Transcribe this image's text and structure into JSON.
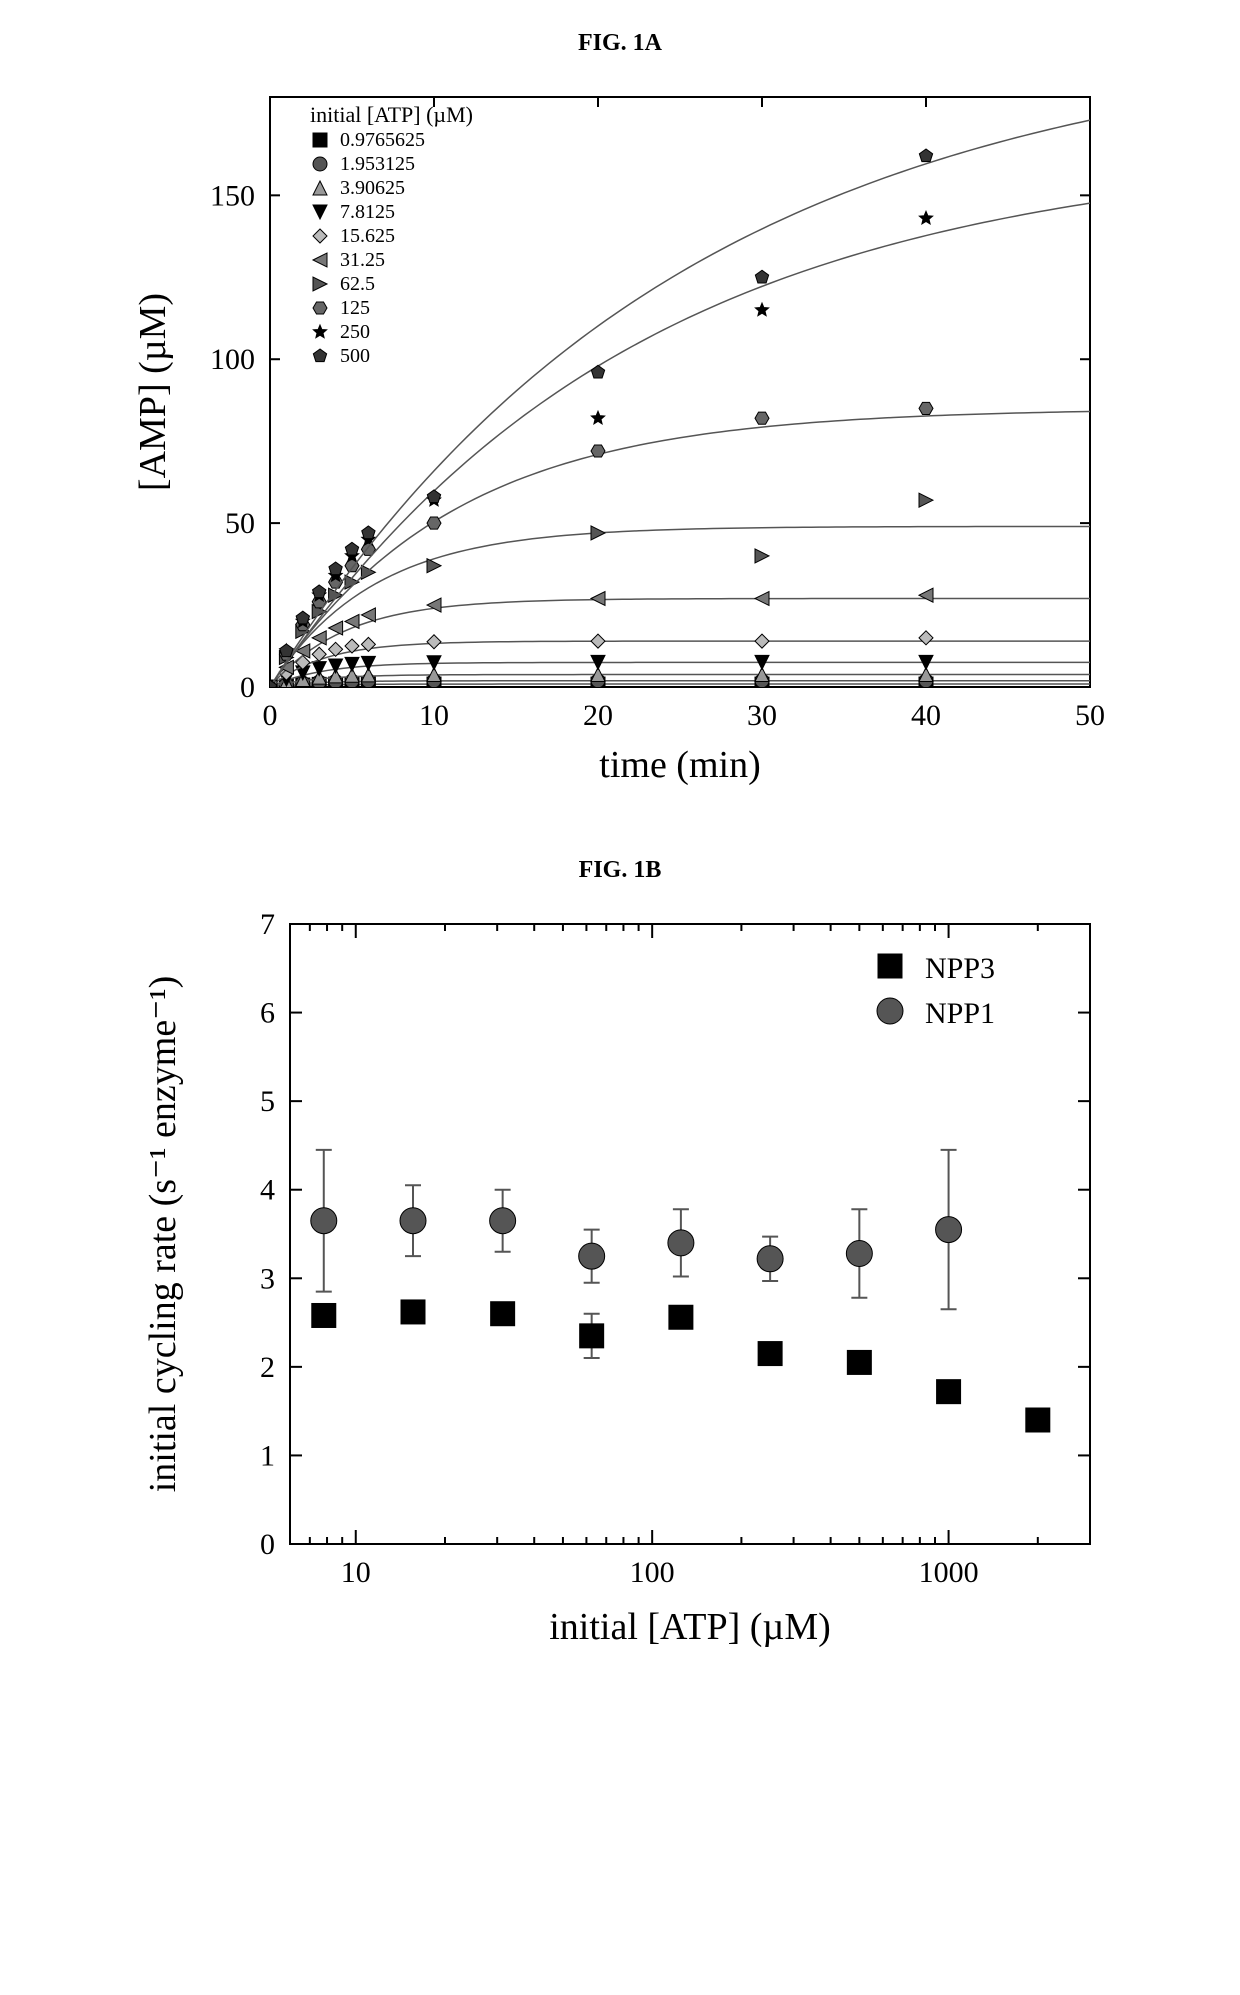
{
  "figA": {
    "title": "FIG. 1A",
    "type": "scatter+line",
    "xlabel": "time (min)",
    "ylabel": "[AMP] (µM)",
    "axis_label_fontsize": 38,
    "tick_fontsize": 30,
    "xlim": [
      0,
      50
    ],
    "ylim": [
      0,
      180
    ],
    "xticks": [
      0,
      10,
      20,
      30,
      40,
      50
    ],
    "yticks": [
      0,
      50,
      100,
      150
    ],
    "background_color": "#ffffff",
    "axis_color": "#000000",
    "line_color": "#555555",
    "legend": {
      "title": "initial [ATP] (µM)",
      "fontsize": 20,
      "title_fontsize": 22,
      "items": [
        {
          "label": "0.9765625",
          "marker": "square-filled",
          "color": "#000000"
        },
        {
          "label": "1.953125",
          "marker": "circle-filled",
          "color": "#555555"
        },
        {
          "label": "3.90625",
          "marker": "triangle-up",
          "color": "#999999"
        },
        {
          "label": "7.8125",
          "marker": "triangle-down",
          "color": "#000000"
        },
        {
          "label": "15.625",
          "marker": "diamond",
          "color": "#bbbbbb"
        },
        {
          "label": "31.25",
          "marker": "triangle-left",
          "color": "#777777"
        },
        {
          "label": "62.5",
          "marker": "triangle-right",
          "color": "#555555"
        },
        {
          "label": "125",
          "marker": "hexagon",
          "color": "#666666"
        },
        {
          "label": "250",
          "marker": "star",
          "color": "#000000"
        },
        {
          "label": "500",
          "marker": "pentagon",
          "color": "#333333"
        }
      ]
    },
    "series": [
      {
        "name": "0.9765625",
        "plateau": 0.9,
        "k": 0.4,
        "marker": "square-filled",
        "color": "#000000",
        "points": [
          [
            0,
            0
          ],
          [
            1,
            0.3
          ],
          [
            2,
            0.6
          ],
          [
            3,
            0.8
          ],
          [
            4,
            0.9
          ],
          [
            5,
            0.9
          ],
          [
            6,
            0.9
          ],
          [
            10,
            0.9
          ],
          [
            20,
            0.9
          ],
          [
            30,
            0.9
          ],
          [
            40,
            0.9
          ]
        ]
      },
      {
        "name": "1.953125",
        "plateau": 1.9,
        "k": 0.4,
        "marker": "circle-filled",
        "color": "#555555",
        "points": [
          [
            0,
            0
          ],
          [
            1,
            0.7
          ],
          [
            2,
            1.2
          ],
          [
            3,
            1.5
          ],
          [
            4,
            1.7
          ],
          [
            5,
            1.8
          ],
          [
            6,
            1.9
          ],
          [
            10,
            1.9
          ],
          [
            20,
            1.9
          ],
          [
            30,
            1.9
          ],
          [
            40,
            1.9
          ]
        ]
      },
      {
        "name": "3.90625",
        "plateau": 3.8,
        "k": 0.35,
        "marker": "triangle-up",
        "color": "#999999",
        "points": [
          [
            0,
            0
          ],
          [
            1,
            1.3
          ],
          [
            2,
            2.3
          ],
          [
            3,
            3.0
          ],
          [
            4,
            3.4
          ],
          [
            5,
            3.6
          ],
          [
            6,
            3.7
          ],
          [
            10,
            3.8
          ],
          [
            20,
            3.8
          ],
          [
            30,
            3.8
          ],
          [
            40,
            3.8
          ]
        ]
      },
      {
        "name": "7.8125",
        "plateau": 7.5,
        "k": 0.32,
        "marker": "triangle-down",
        "color": "#000000",
        "points": [
          [
            0,
            0
          ],
          [
            1,
            2.4
          ],
          [
            2,
            4.3
          ],
          [
            3,
            5.6
          ],
          [
            4,
            6.4
          ],
          [
            5,
            6.9
          ],
          [
            6,
            7.2
          ],
          [
            10,
            7.4
          ],
          [
            20,
            7.5
          ],
          [
            30,
            7.5
          ],
          [
            40,
            7.5
          ]
        ]
      },
      {
        "name": "15.625",
        "plateau": 14,
        "k": 0.3,
        "marker": "diamond",
        "color": "#bbbbbb",
        "points": [
          [
            0,
            0
          ],
          [
            1,
            4.2
          ],
          [
            2,
            7.5
          ],
          [
            3,
            10
          ],
          [
            4,
            11.5
          ],
          [
            5,
            12.5
          ],
          [
            6,
            13
          ],
          [
            10,
            13.8
          ],
          [
            20,
            14
          ],
          [
            30,
            14
          ],
          [
            40,
            15
          ]
        ]
      },
      {
        "name": "31.25",
        "plateau": 27,
        "k": 0.22,
        "marker": "triangle-left",
        "color": "#777777",
        "points": [
          [
            0,
            0
          ],
          [
            1,
            6
          ],
          [
            2,
            11
          ],
          [
            3,
            15
          ],
          [
            4,
            18
          ],
          [
            5,
            20
          ],
          [
            6,
            22
          ],
          [
            10,
            25
          ],
          [
            20,
            27
          ],
          [
            30,
            27
          ],
          [
            40,
            28
          ]
        ]
      },
      {
        "name": "62.5",
        "plateau": 49,
        "k": 0.16,
        "marker": "triangle-right",
        "color": "#555555",
        "points": [
          [
            0,
            0
          ],
          [
            1,
            9
          ],
          [
            2,
            17
          ],
          [
            3,
            23
          ],
          [
            4,
            28
          ],
          [
            5,
            32
          ],
          [
            6,
            35
          ],
          [
            10,
            37
          ],
          [
            20,
            47
          ],
          [
            30,
            40
          ],
          [
            40,
            57
          ]
        ]
      },
      {
        "name": "125",
        "plateau": 85,
        "k": 0.09,
        "marker": "hexagon",
        "color": "#666666",
        "points": [
          [
            0,
            0
          ],
          [
            1,
            10
          ],
          [
            2,
            19
          ],
          [
            3,
            26
          ],
          [
            4,
            32
          ],
          [
            5,
            37
          ],
          [
            6,
            42
          ],
          [
            10,
            50
          ],
          [
            20,
            72
          ],
          [
            30,
            82
          ],
          [
            40,
            85
          ]
        ]
      },
      {
        "name": "250",
        "plateau": 165,
        "k": 0.045,
        "marker": "star",
        "color": "#000000",
        "points": [
          [
            0,
            0
          ],
          [
            1,
            11
          ],
          [
            2,
            20
          ],
          [
            3,
            28
          ],
          [
            4,
            34
          ],
          [
            5,
            40
          ],
          [
            6,
            45
          ],
          [
            10,
            57
          ],
          [
            20,
            82
          ],
          [
            30,
            115
          ],
          [
            40,
            143
          ]
        ]
      },
      {
        "name": "500",
        "plateau": 200,
        "k": 0.04,
        "marker": "pentagon",
        "color": "#333333",
        "points": [
          [
            0,
            0
          ],
          [
            1,
            11
          ],
          [
            2,
            21
          ],
          [
            3,
            29
          ],
          [
            4,
            36
          ],
          [
            5,
            42
          ],
          [
            6,
            47
          ],
          [
            10,
            58
          ],
          [
            20,
            96
          ],
          [
            30,
            125
          ],
          [
            40,
            162
          ]
        ]
      }
    ]
  },
  "figB": {
    "title": "FIG. 1B",
    "type": "scatter-errorbar-logx",
    "xlabel": "initial [ATP] (µM)",
    "ylabel": "initial cycling rate (s⁻¹ enzyme⁻¹)",
    "axis_label_fontsize": 38,
    "tick_fontsize": 30,
    "xlim": [
      6,
      3000
    ],
    "ylim": [
      0,
      7
    ],
    "xticks": [
      10,
      100,
      1000
    ],
    "xticklabels": [
      "10",
      "100",
      "1000"
    ],
    "yticks": [
      0,
      1,
      2,
      3,
      4,
      5,
      6,
      7
    ],
    "x_scale": "log",
    "background_color": "#ffffff",
    "axis_color": "#000000",
    "errorbar_color": "#555555",
    "xminor": [
      7,
      8,
      9,
      20,
      30,
      40,
      50,
      60,
      70,
      80,
      90,
      200,
      300,
      400,
      500,
      600,
      700,
      800,
      900,
      2000,
      3000
    ],
    "legend": {
      "fontsize": 30,
      "items": [
        {
          "label": "NPP3",
          "marker": "square-filled",
          "color": "#000000",
          "size": 18
        },
        {
          "label": "NPP1",
          "marker": "circle-filled",
          "color": "#555555",
          "size": 20
        }
      ]
    },
    "series": [
      {
        "name": "NPP3",
        "marker": "square-filled",
        "color": "#000000",
        "size": 16,
        "points": [
          {
            "x": 7.8,
            "y": 2.58,
            "err": 0.12
          },
          {
            "x": 15.6,
            "y": 2.62,
            "err": 0.1
          },
          {
            "x": 31.3,
            "y": 2.6,
            "err": 0.1
          },
          {
            "x": 62.5,
            "y": 2.35,
            "err": 0.25
          },
          {
            "x": 125,
            "y": 2.56,
            "err": 0.1
          },
          {
            "x": 250,
            "y": 2.15,
            "err": 0.1
          },
          {
            "x": 500,
            "y": 2.05,
            "err": 0.1
          },
          {
            "x": 1000,
            "y": 1.72,
            "err": 0.1
          },
          {
            "x": 2000,
            "y": 1.4,
            "err": 0.08
          }
        ]
      },
      {
        "name": "NPP1",
        "marker": "circle-filled",
        "color": "#555555",
        "size": 18,
        "points": [
          {
            "x": 7.8,
            "y": 3.65,
            "err": 0.8
          },
          {
            "x": 15.6,
            "y": 3.65,
            "err": 0.4
          },
          {
            "x": 31.3,
            "y": 3.65,
            "err": 0.35
          },
          {
            "x": 62.5,
            "y": 3.25,
            "err": 0.3
          },
          {
            "x": 125,
            "y": 3.4,
            "err": 0.38
          },
          {
            "x": 250,
            "y": 3.22,
            "err": 0.25
          },
          {
            "x": 500,
            "y": 3.28,
            "err": 0.5
          },
          {
            "x": 1000,
            "y": 3.55,
            "err": 0.9
          }
        ]
      }
    ]
  }
}
